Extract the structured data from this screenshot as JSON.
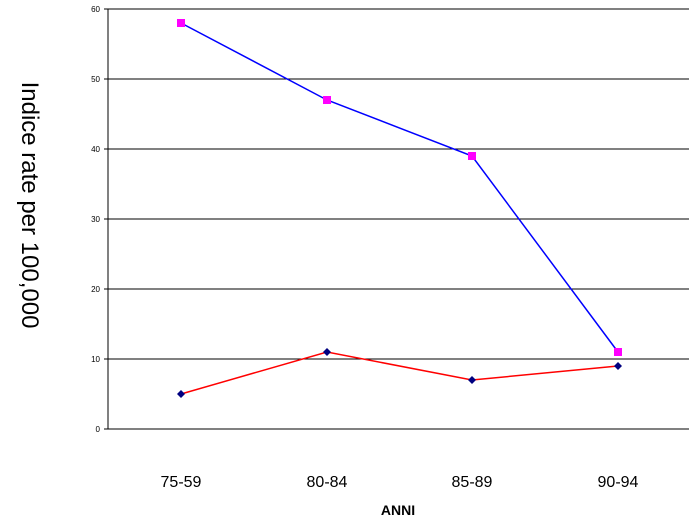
{
  "chart_data": {
    "type": "line",
    "title": "",
    "xlabel": "ANNI",
    "ylabel": "Indice rate per 100,000",
    "categories": [
      "75-59",
      "80-84",
      "85-89",
      "90-94"
    ],
    "ylim": [
      0,
      60
    ],
    "yticks": [
      "0",
      "10",
      "20",
      "30",
      "40",
      "50",
      "60"
    ],
    "grid": true,
    "legend": "none",
    "series": [
      {
        "values": [
          58,
          47,
          39,
          11
        ],
        "line_color": "#0000ff",
        "marker": "square",
        "marker_color": "#ff00ff"
      },
      {
        "values": [
          5,
          11,
          7,
          9
        ],
        "line_color": "#ff0000",
        "marker": "diamond",
        "marker_color": "#000080"
      }
    ]
  }
}
